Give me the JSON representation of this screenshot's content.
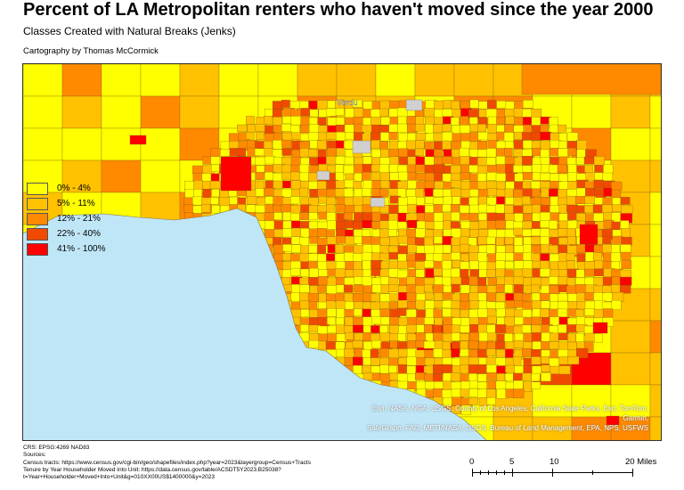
{
  "title": "Percent of LA Metropolitan renters who haven't moved since the year 2000",
  "subtitle": "Classes Created with Natural Breaks (Jenks)",
  "credit": "Cartography by Thomas McCormick",
  "map": {
    "ocean_color": "#bfe6f7",
    "place_label": "Verdu",
    "attribution_line1": "Esri, NASA, NGA, USGS, County of Los Angeles, California State Parks, Esri, TomTom, Garmin,",
    "attribution_line2": "SafeGraph, FAO, METI/NASA, USGS, Bureau of Land Management, EPA, NPS, USFWS"
  },
  "legend": [
    {
      "label": "0% - 4%",
      "color": "#ffff00"
    },
    {
      "label": "5% - 11%",
      "color": "#ffc100"
    },
    {
      "label": "12% - 21%",
      "color": "#ff8a00"
    },
    {
      "label": "22% - 40%",
      "color": "#f04a00"
    },
    {
      "label": "41% - 100%",
      "color": "#ff0000"
    }
  ],
  "sources": {
    "crs": "CRS: EPSG:4269 NAD83",
    "heading": "Sources:",
    "line1": "Census tracts: https://www.census.gov/cgi-bin/geo/shapefiles/index.php?year=2023&layergroup=Census+Tracts",
    "line2": "Tenure by Year Householder Moved Into Unit: https://data.census.gov/table/ACSDT5Y2023.B25038?",
    "line3": "t=Year+Householder+Moved+Into+Unit&g=010XX00US$1400000&y=2023"
  },
  "scale": {
    "labels": [
      "0",
      "5",
      "10",
      "20 Miles"
    ],
    "values_miles": [
      0,
      5,
      10,
      20
    ]
  }
}
